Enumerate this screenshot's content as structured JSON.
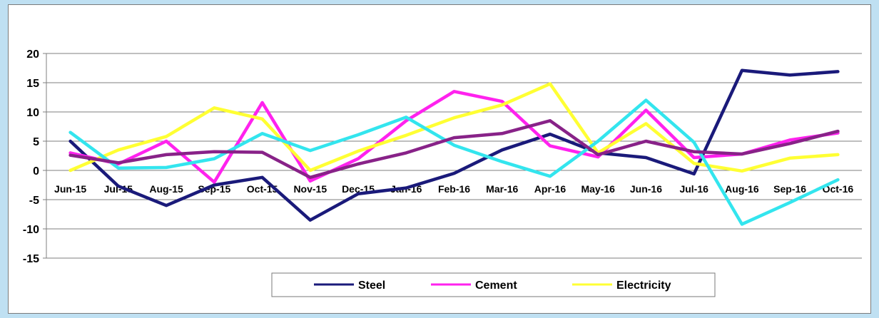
{
  "chart_data": {
    "type": "line",
    "categories": [
      "Jun-15",
      "Jul-15",
      "Aug-15",
      "Sep-15",
      "Oct-15",
      "Nov-15",
      "Dec-15",
      "Jan-16",
      "Feb-16",
      "Mar-16",
      "Apr-16",
      "May-16",
      "Jun-16",
      "Jul-16",
      "Aug-16",
      "Sep-16",
      "Oct-16"
    ],
    "ylim": [
      -15,
      20
    ],
    "yticks": [
      -15,
      -10,
      -5,
      0,
      5,
      10,
      15,
      20
    ],
    "grid": true,
    "legend_position": "bottom",
    "series": [
      {
        "name": "Steel",
        "color": "#1a1a7a",
        "values": [
          5,
          -2.7,
          -6,
          -2.5,
          -1.2,
          -8.5,
          -4,
          -3,
          -0.5,
          3.5,
          6.2,
          3,
          2.2,
          -0.6,
          17.1,
          16.3,
          16.9
        ]
      },
      {
        "name": "Cement",
        "color": "#ff22ee",
        "values": [
          3,
          1.1,
          5,
          -2,
          11.6,
          -1.8,
          2,
          8.5,
          13.5,
          11.8,
          4.2,
          2.3,
          10.3,
          2.2,
          2.8,
          5.2,
          6.4
        ]
      },
      {
        "name": "Electricity",
        "color": "#ffff33",
        "values": [
          0,
          3.5,
          5.8,
          10.7,
          8.8,
          0,
          3.3,
          6,
          9,
          11.2,
          14.8,
          3,
          8,
          1.2,
          -0.1,
          2.1,
          2.7
        ]
      },
      {
        "name": "",
        "color": "#33e5ee",
        "values": [
          6.5,
          0.4,
          0.5,
          2,
          6.3,
          3.4,
          6.1,
          9.1,
          4.3,
          1.5,
          -1,
          5,
          12,
          4.8,
          -9.2,
          -5.5,
          -1.6
        ]
      },
      {
        "name": "",
        "color": "#882288",
        "values": [
          2.6,
          1.3,
          2.7,
          3.2,
          3.1,
          -1.2,
          1.1,
          3,
          5.6,
          6.3,
          8.5,
          2.7,
          5,
          3.2,
          2.8,
          4.6,
          6.7
        ]
      }
    ]
  }
}
